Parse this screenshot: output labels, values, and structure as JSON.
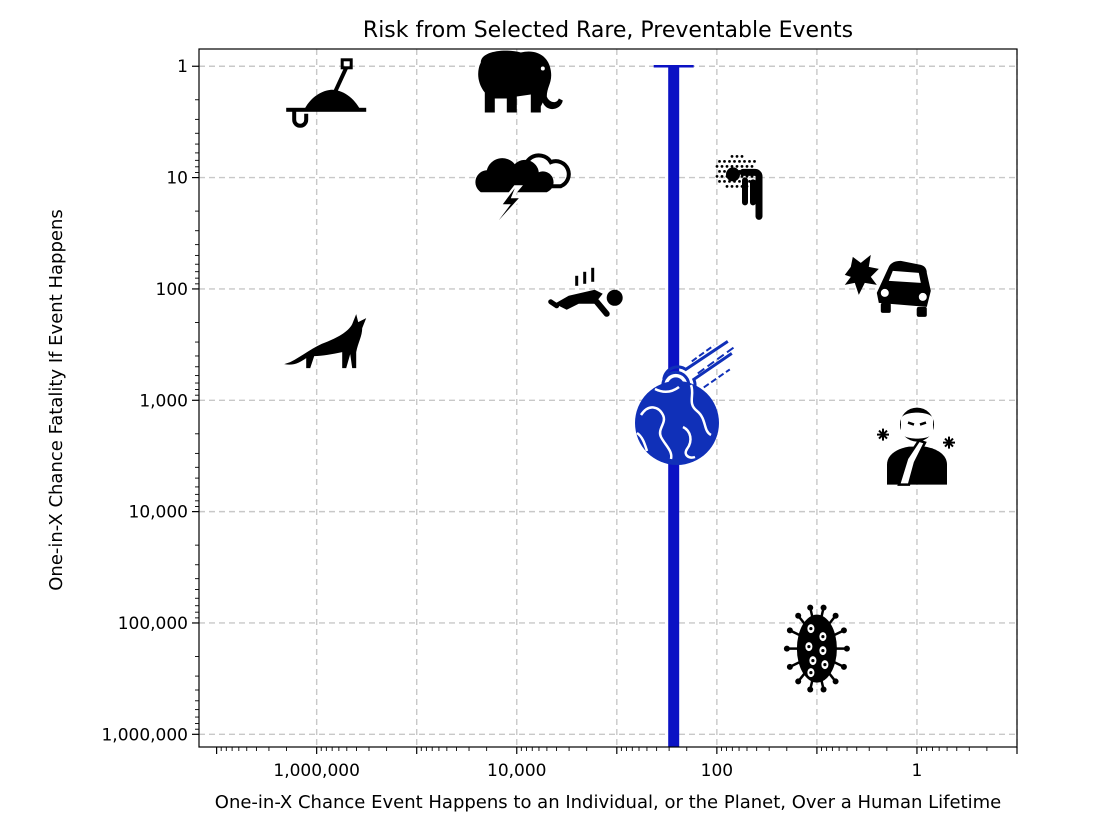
{
  "chart_data": {
    "type": "scatter",
    "title": "Risk from Selected Rare, Preventable Events",
    "xlabel": "One-in-X Chance Event Happens to an Individual, or the Planet, Over a Human Lifetime",
    "ylabel": "One-in-X Chance Fatality If Event Happens",
    "x_scale": "log",
    "y_scale": "log",
    "x_inverted": true,
    "y_inverted": true,
    "xlim": [
      15000000,
      0.1
    ],
    "ylim": [
      0.7,
      1300000
    ],
    "grid": true,
    "x_ticks": [
      {
        "value": 1000000,
        "label": "1,000,000"
      },
      {
        "value": 10000,
        "label": "10,000"
      },
      {
        "value": 100,
        "label": "100"
      },
      {
        "value": 1,
        "label": "1"
      }
    ],
    "x_gridlines": [
      1000000,
      100000,
      10000,
      1000,
      100,
      10,
      1,
      0.1
    ],
    "y_ticks": [
      {
        "value": 1,
        "label": "1"
      },
      {
        "value": 10,
        "label": "10"
      },
      {
        "value": 100,
        "label": "100"
      },
      {
        "value": 1000,
        "label": "1,000"
      },
      {
        "value": 10000,
        "label": "10,000"
      },
      {
        "value": 100000,
        "label": "100,000"
      },
      {
        "value": 1000000,
        "label": "1,000,000"
      }
    ],
    "points": [
      {
        "icon": "grave-shovel-icon",
        "x": 700000,
        "y": 2,
        "color": "#000000"
      },
      {
        "icon": "elephant-icon",
        "x": 10000,
        "y": 1.4,
        "color": "#000000"
      },
      {
        "icon": "thunderstorm-icon",
        "x": 10000,
        "y": 11,
        "color": "#000000"
      },
      {
        "icon": "person-under-ash-icon",
        "x": 50,
        "y": 12,
        "color": "#000000"
      },
      {
        "icon": "falling-person-icon",
        "x": 2000,
        "y": 120,
        "color": "#000000"
      },
      {
        "icon": "car-crash-icon",
        "x": 2,
        "y": 100,
        "color": "#000000"
      },
      {
        "icon": "wolf-icon",
        "x": 700000,
        "y": 300,
        "color": "#000000"
      },
      {
        "icon": "meteor-icon",
        "x": 170,
        "y": 550,
        "color": "#1030b8"
      },
      {
        "icon": "earth-icon",
        "x": 250,
        "y": 1600,
        "color": "#1030b8"
      },
      {
        "icon": "sick-person-icon",
        "x": 1,
        "y": 2500,
        "color": "#000000"
      },
      {
        "icon": "virus-icon",
        "x": 10,
        "y": 170000,
        "color": "#000000"
      }
    ],
    "vertical_bar": {
      "x": 270,
      "y_from": 1,
      "y_to": 1300000,
      "color": "#0b12c4"
    }
  }
}
